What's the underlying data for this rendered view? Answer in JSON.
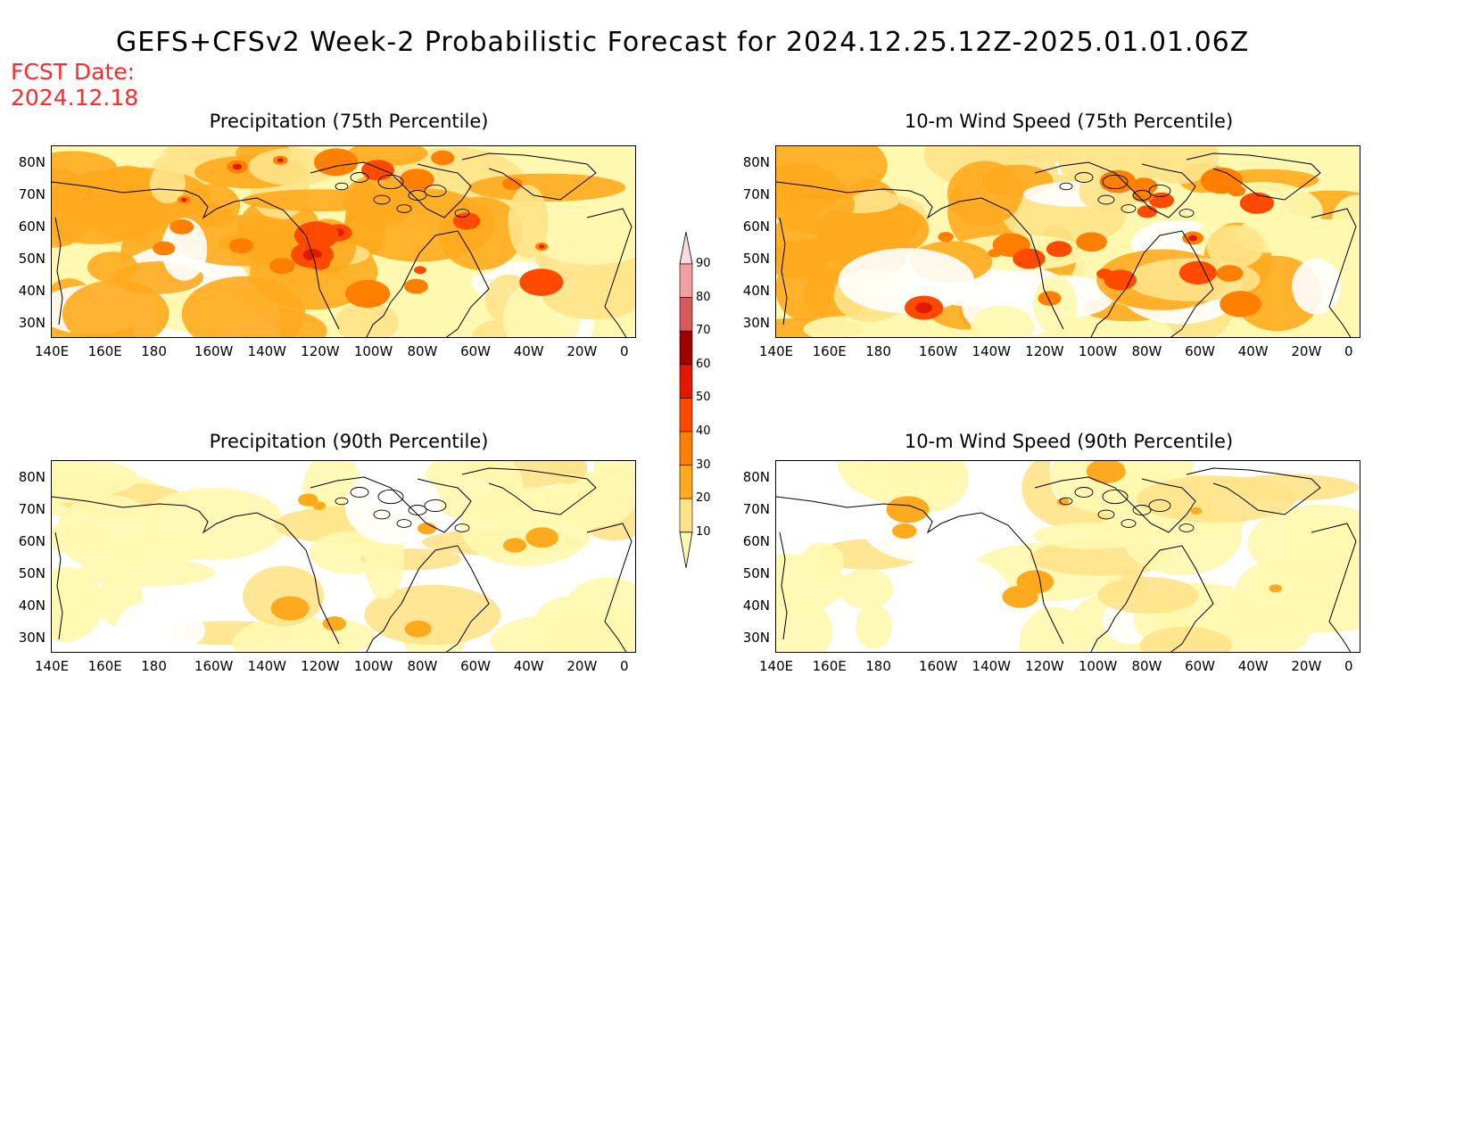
{
  "header": {
    "title": "GEFS+CFSv2 Week-2 Probabilistic Forecast for 2024.12.25.12Z-2025.01.01.06Z",
    "fcst_label": "FCST Date:",
    "fcst_date": "2024.12.18"
  },
  "lon_labels": [
    "140E",
    "160E",
    "180",
    "160W",
    "140W",
    "120W",
    "100W",
    "80W",
    "60W",
    "40W",
    "20W",
    "0"
  ],
  "lat_labels": [
    "80N",
    "70N",
    "60N",
    "50N",
    "40N",
    "30N"
  ],
  "panels": [
    {
      "title": "Precipitation (75th Percentile)",
      "intensity": "high"
    },
    {
      "title": "10-m Wind Speed (75th Percentile)",
      "intensity": "high"
    },
    {
      "title": "Precipitation (90th Percentile)",
      "intensity": "low"
    },
    {
      "title": "10-m Wind Speed (90th Percentile)",
      "intensity": "low"
    }
  ],
  "colorbar": {
    "levels": [
      "10",
      "20",
      "30",
      "40",
      "50",
      "60",
      "70",
      "80",
      "90"
    ],
    "colors": [
      "#fff8b0",
      "#ffe38a",
      "#ffaa1e",
      "#ff7f00",
      "#ff4a00",
      "#e21800",
      "#a00000",
      "#d65a5a",
      "#f0a0a0",
      "#ffdcdc"
    ]
  }
}
